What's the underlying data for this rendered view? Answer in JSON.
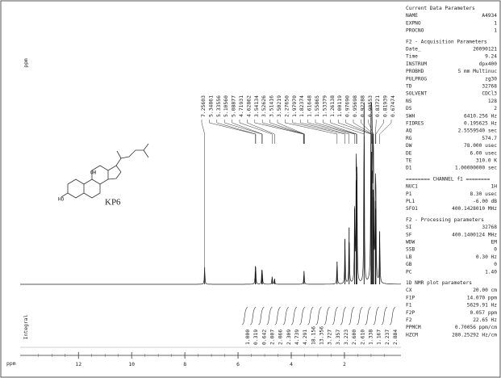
{
  "chart_data": {
    "type": "nmr",
    "axis_label": "ppm",
    "integral_label": "Integral",
    "compound": "KP6",
    "xlim": [
      14.07,
      0.057
    ],
    "xticks": [
      12,
      10,
      8,
      6,
      4,
      2
    ],
    "peak_labels": [
      "7.25603",
      "5.34861",
      "5.33556",
      "5.10560",
      "5.08877",
      "4.71931",
      "4.62862",
      "3.54134",
      "3.52626",
      "3.51416",
      "3.50219",
      "2.27650",
      "1.97970",
      "1.82374",
      "1.61648",
      "1.55865",
      "1.53379",
      "1.26138",
      "1.00119",
      "0.97690",
      "0.95698",
      "0.92288",
      "0.90553",
      "0.83721",
      "0.81939",
      "0.67474"
    ],
    "peaks": {
      "ppm": [
        7.256,
        5.349,
        5.336,
        5.106,
        5.089,
        4.719,
        4.629,
        3.52,
        2.277,
        1.98,
        1.824,
        1.616,
        1.559,
        1.534,
        1.261,
        1.001,
        0.977,
        0.957,
        0.923,
        0.906,
        0.837,
        0.819,
        0.675
      ],
      "height": [
        9,
        7,
        6,
        6,
        5,
        4,
        3,
        7,
        12,
        24,
        30,
        40,
        55,
        62,
        96,
        88,
        70,
        60,
        50,
        46,
        44,
        40,
        28
      ]
    },
    "integrals": [
      "1.000",
      "0.319",
      "0.642",
      "2.007",
      "2.066",
      "2.309",
      "4.739",
      "4.291",
      "18.156",
      "13.356",
      "3.727",
      "3.357",
      "3.223",
      "2.600",
      "2.610",
      "1.338",
      "1.167",
      "2.237",
      "2.884"
    ]
  },
  "parameters": [
    {
      "title": "Current Data Parameters",
      "rows": [
        [
          "NAME",
          "A4934"
        ],
        [
          "EXPNO",
          "1"
        ],
        [
          "PROCNO",
          "1"
        ]
      ]
    },
    {
      "title": "F2 - Acquisition Parameters",
      "rows": [
        [
          "Date_",
          "20090121"
        ],
        [
          "Time",
          "9.24"
        ],
        [
          "INSTRUM",
          "dpx400"
        ],
        [
          "PROBHD",
          "5 mm Multinuc"
        ],
        [
          "PULPROG",
          "zg30"
        ],
        [
          "TD",
          "32768"
        ],
        [
          "SOLVENT",
          "CDCl3"
        ],
        [
          "NS",
          "128"
        ],
        [
          "DS",
          "2"
        ],
        [
          "SWH",
          "6410.256 Hz"
        ],
        [
          "FIDRES",
          "0.195625 Hz"
        ],
        [
          "AQ",
          "2.5559540 sec"
        ],
        [
          "RG",
          "574.7"
        ],
        [
          "DW",
          "78.000 usec"
        ],
        [
          "DE",
          "6.00 usec"
        ],
        [
          "TE",
          "310.0 K"
        ],
        [
          "D1",
          "1.00000000 sec"
        ]
      ]
    },
    {
      "title": "======== CHANNEL f1 ========",
      "rows": [
        [
          "NUC1",
          "1H"
        ],
        [
          "P1",
          "8.30 usec"
        ],
        [
          "PL1",
          "-6.00 dB"
        ],
        [
          "SFO1",
          "400.1428010 MHz"
        ]
      ]
    },
    {
      "title": "F2 - Processing parameters",
      "rows": [
        [
          "SI",
          "32768"
        ],
        [
          "SF",
          "400.1400124 MHz"
        ],
        [
          "WDW",
          "EM"
        ],
        [
          "SSB",
          "0"
        ],
        [
          "LB",
          "0.30 Hz"
        ],
        [
          "GB",
          "0"
        ],
        [
          "PC",
          "1.40"
        ]
      ]
    },
    {
      "title": "1D NMR plot parameters",
      "rows": [
        [
          "CX",
          "20.00 cm"
        ],
        [
          "F1P",
          "14.070 ppm"
        ],
        [
          "F1",
          "5629.91 Hz"
        ],
        [
          "F2P",
          "0.057 ppm"
        ],
        [
          "F2",
          "22.65 Hz"
        ],
        [
          "PPMCM",
          "0.70056 ppm/cm"
        ],
        [
          "HZCM",
          "280.25292 Hz/cm"
        ]
      ]
    }
  ]
}
